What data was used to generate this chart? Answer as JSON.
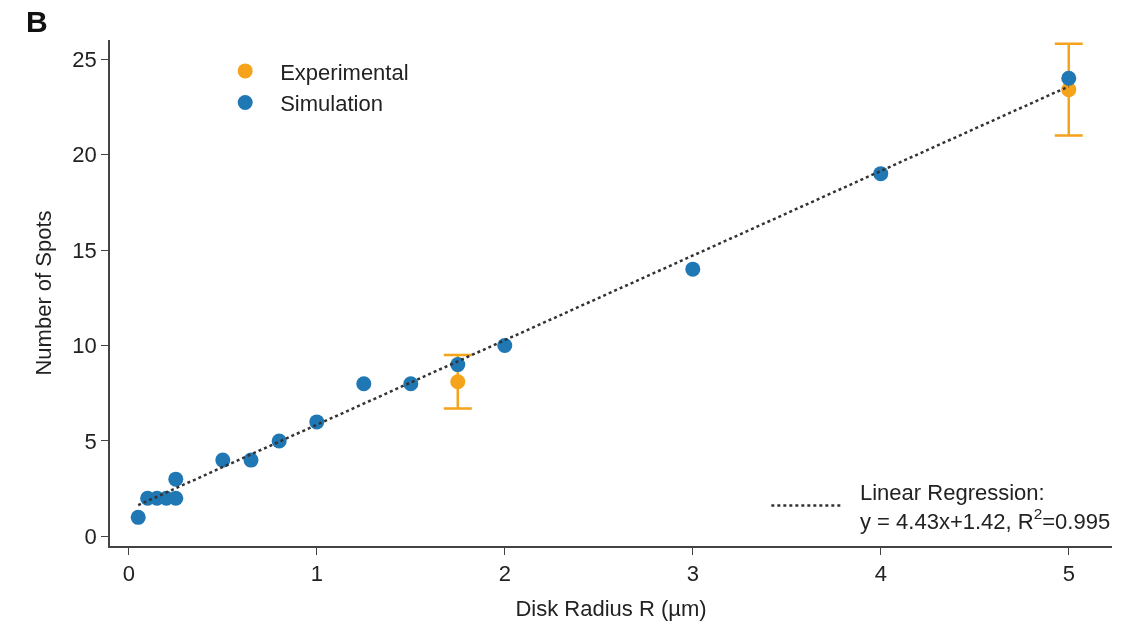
{
  "chart_data": {
    "type": "scatter",
    "title": "B",
    "xlabel": "Disk Radius R (µm)",
    "ylabel": "Number of Spots",
    "xlim": [
      -0.1,
      5.23
    ],
    "ylim": [
      -0.5,
      26
    ],
    "xticks": [
      0,
      1,
      2,
      3,
      4,
      5
    ],
    "yticks": [
      0,
      5,
      10,
      15,
      20,
      25
    ],
    "legend": "top left",
    "marker": "circle",
    "annotations": [
      "Linear Regression:\ny = 4.43x+1.42, R$^{2}$=0.995"
    ],
    "series": [
      {
        "name": "Experimental",
        "color": "#f5a31a",
        "x": [
          1.75,
          5
        ],
        "values": [
          8.1,
          23.4
        ],
        "errors": [
          [
            6.7,
            9.5
          ],
          [
            21.0,
            25.8
          ]
        ]
      },
      {
        "name": "Simulation",
        "color": "#1f77b4",
        "x": [
          0.05,
          0.1,
          0.15,
          0.2,
          0.25,
          0.25,
          0.5,
          0.65,
          0.8,
          1,
          1.25,
          1.5,
          1.75,
          2,
          3,
          4,
          5
        ],
        "values": [
          1,
          2,
          2,
          2,
          2,
          3,
          4,
          4,
          5,
          6,
          8,
          8,
          9,
          10,
          14,
          19,
          24
        ]
      },
      {
        "type": "line",
        "line_style": "dotted",
        "marker": "none",
        "color": "#333333",
        "x": [
          0.05,
          5
        ],
        "values": [
          1.64,
          23.57
        ]
      }
    ]
  }
}
